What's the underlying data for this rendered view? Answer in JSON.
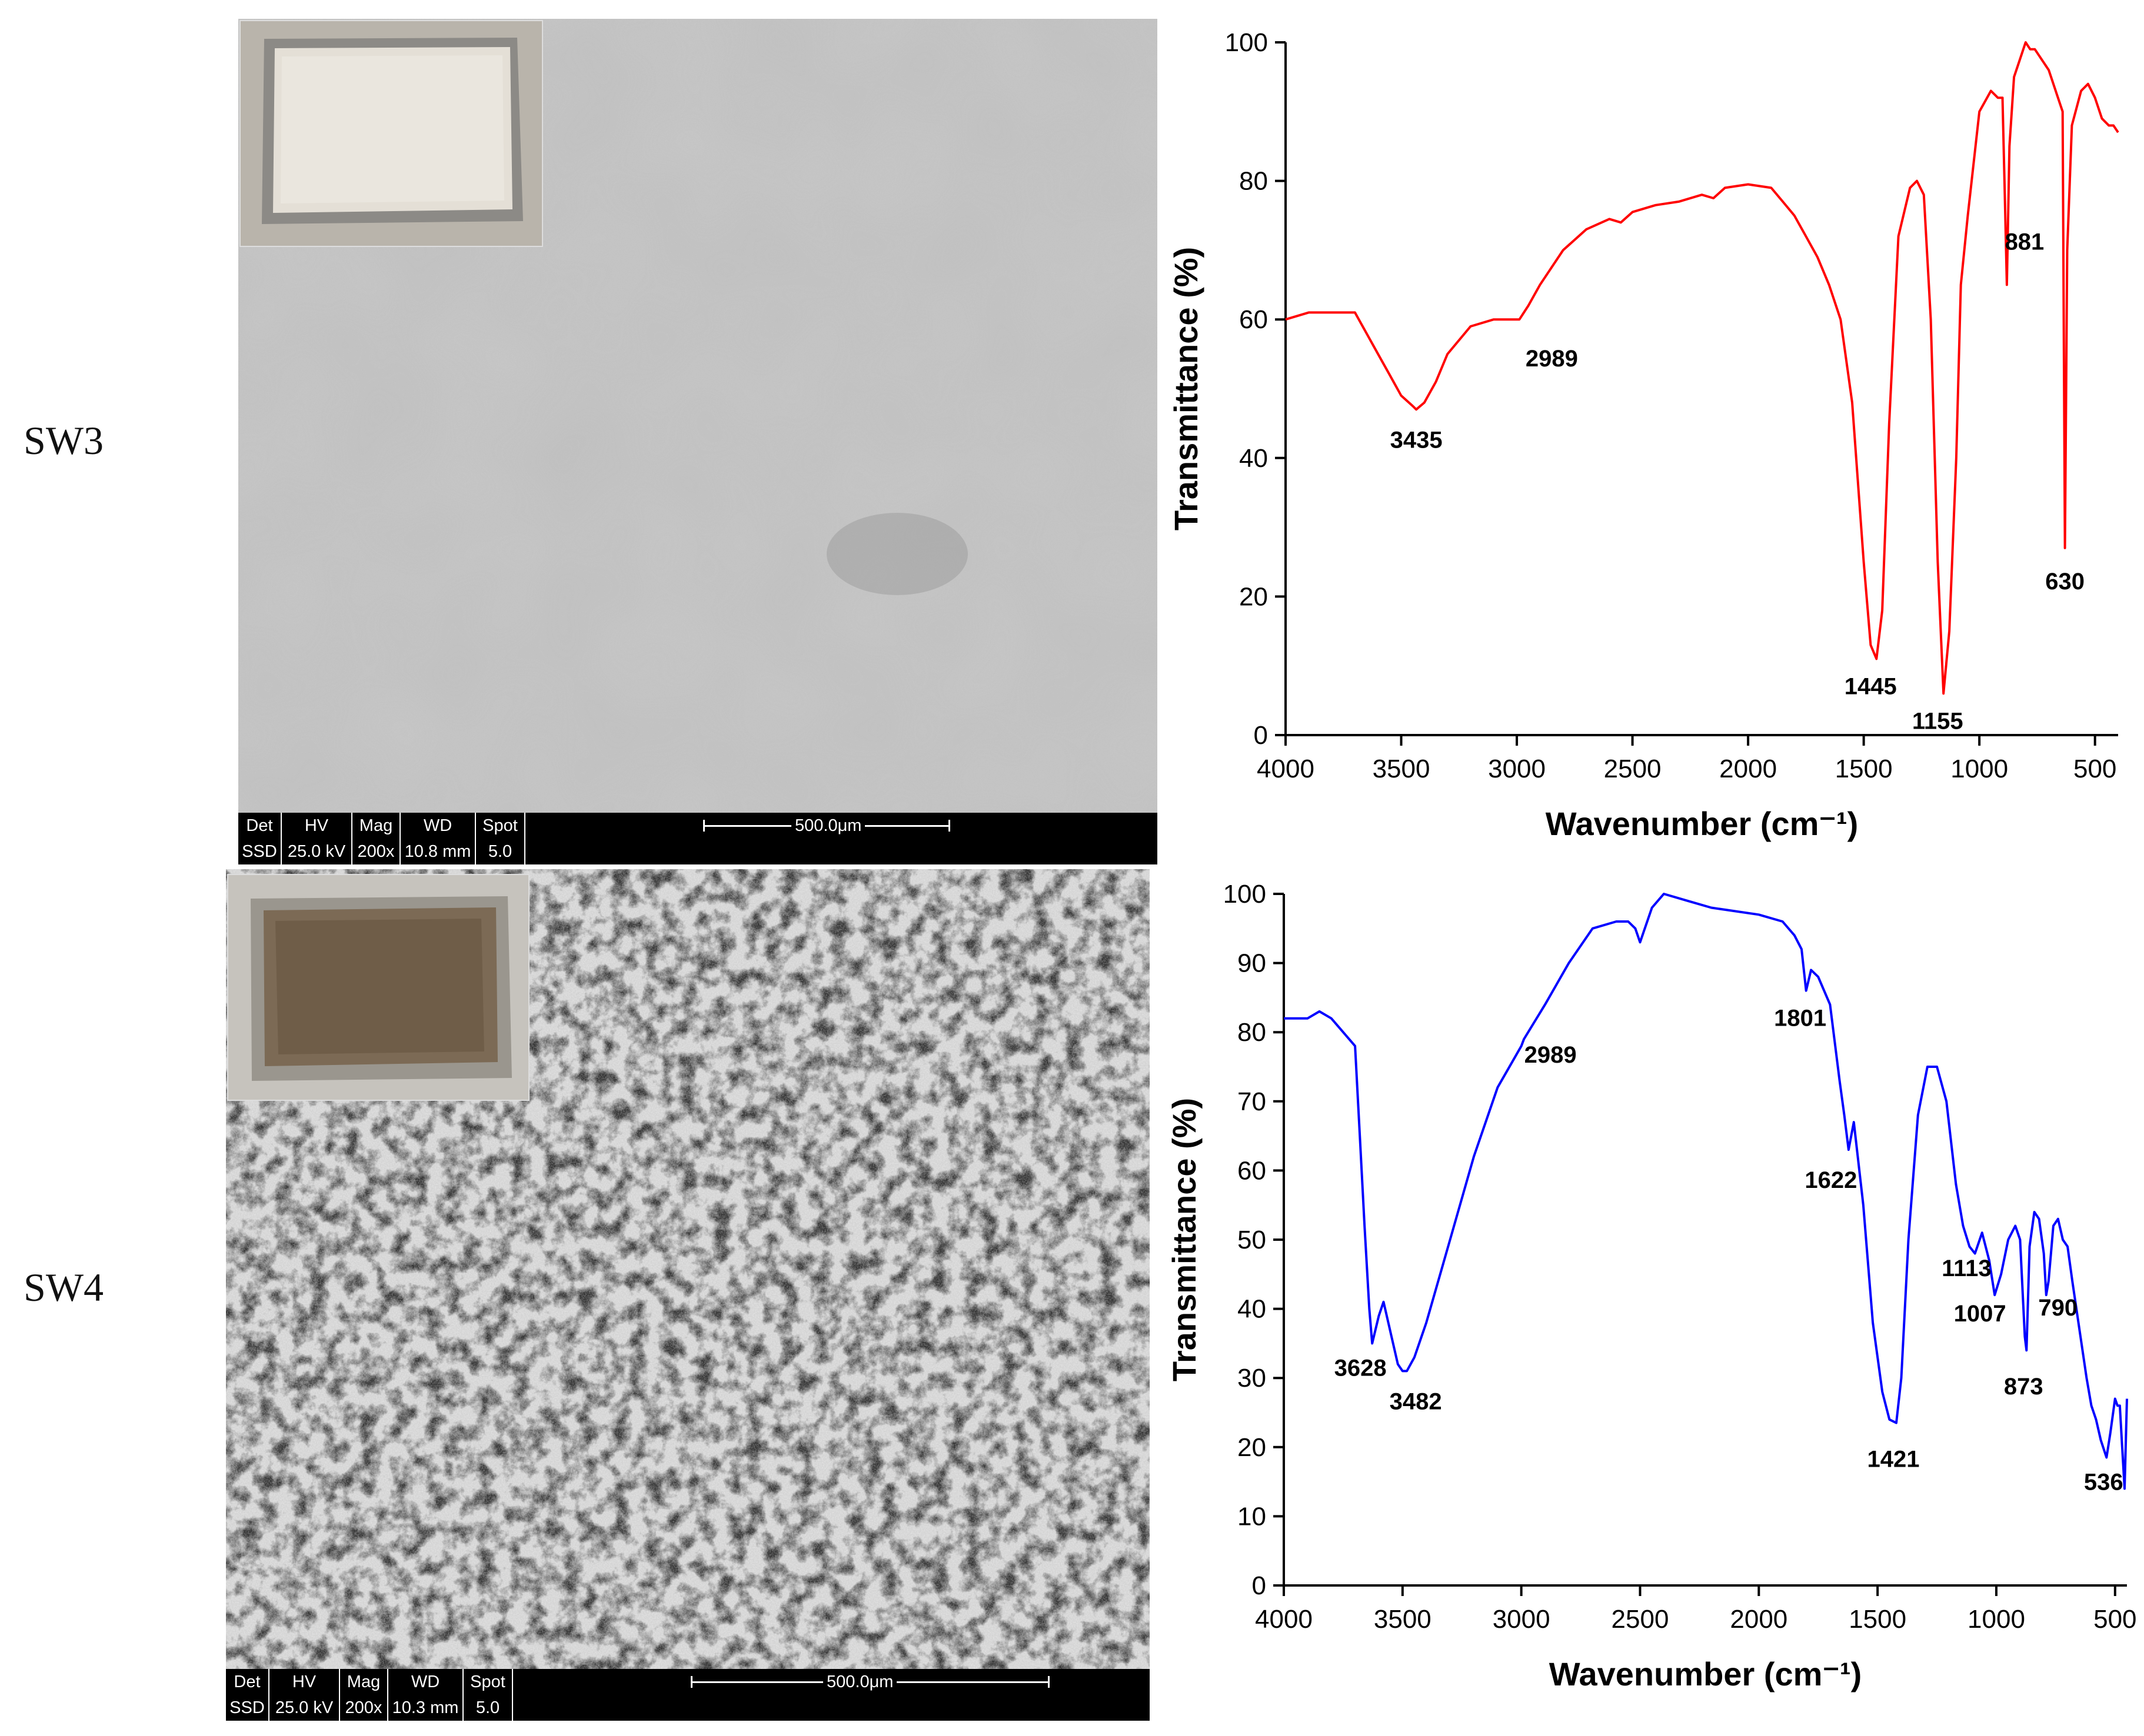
{
  "panels": [
    {
      "label": "SW3",
      "sem_databar": {
        "headers": [
          "Det",
          "HV",
          "Mag",
          "WD",
          "Spot"
        ],
        "values": [
          "SSD",
          "25.0 kV",
          "200x",
          "10.8 mm",
          "5.0"
        ],
        "scale": "500.0μm"
      },
      "chart_data": {
        "type": "line",
        "xlabel": "Wavenumber (cm⁻¹)",
        "ylabel": "Transmittance (%)",
        "xlim": [
          4000,
          400
        ],
        "ylim": [
          0,
          100
        ],
        "xticks": [
          4000,
          3500,
          3000,
          2500,
          2000,
          1500,
          1000,
          500
        ],
        "yticks": [
          0,
          20,
          40,
          60,
          80,
          100
        ],
        "color": "#ff0000",
        "series": [
          {
            "x": [
              4000,
              3900,
              3800,
              3700,
              3650,
              3600,
              3550,
              3500,
              3450,
              3435,
              3400,
              3350,
              3300,
              3200,
              3100,
              3000,
              2989,
              2950,
              2900,
              2800,
              2700,
              2600,
              2550,
              2500,
              2450,
              2400,
              2300,
              2200,
              2150,
              2100,
              2000,
              1900,
              1850,
              1800,
              1750,
              1700,
              1650,
              1600,
              1550,
              1500,
              1470,
              1445,
              1420,
              1390,
              1350,
              1300,
              1270,
              1240,
              1210,
              1180,
              1155,
              1130,
              1100,
              1080,
              1050,
              1000,
              950,
              920,
              900,
              890,
              881,
              870,
              850,
              800,
              780,
              760,
              700,
              660,
              640,
              630,
              620,
              600,
              560,
              530,
              500,
              470,
              440,
              420,
              400
            ],
            "y": [
              60,
              61,
              61,
              61,
              58,
              55,
              52,
              49,
              47.5,
              47,
              48,
              51,
              55,
              59,
              60,
              60,
              60,
              62,
              65,
              70,
              73,
              74.5,
              74,
              75.5,
              76,
              76.5,
              77,
              78,
              77.5,
              79,
              79.5,
              79,
              77,
              75,
              72,
              69,
              65,
              60,
              48,
              25,
              13,
              11,
              18,
              45,
              72,
              79,
              80,
              78,
              60,
              25,
              6,
              15,
              40,
              65,
              75,
              90,
              93,
              92,
              92,
              78,
              65,
              85,
              95,
              100,
              99,
              99,
              96,
              92,
              90,
              27,
              70,
              88,
              93,
              94,
              92,
              89,
              88,
              88,
              87
            ]
          }
        ],
        "annotations": [
          "3435",
          "2989",
          "1445",
          "1155",
          "881",
          "630"
        ]
      }
    },
    {
      "label": "SW4",
      "sem_databar": {
        "headers": [
          "Det",
          "HV",
          "Mag",
          "WD",
          "Spot"
        ],
        "values": [
          "SSD",
          "25.0 kV",
          "200x",
          "10.3 mm",
          "5.0"
        ],
        "scale": "500.0μm"
      },
      "chart_data": {
        "type": "line",
        "xlabel": "Wavenumber (cm⁻¹)",
        "ylabel": "Transmittance (%)",
        "xlim": [
          4000,
          450
        ],
        "ylim": [
          0,
          100
        ],
        "xticks": [
          4000,
          3500,
          3000,
          2500,
          2000,
          1500,
          1000,
          500
        ],
        "yticks": [
          0,
          10,
          20,
          30,
          40,
          50,
          60,
          70,
          80,
          90,
          100
        ],
        "color": "#0000ff",
        "series": [
          {
            "x": [
              4000,
              3900,
              3850,
              3800,
              3750,
              3700,
              3680,
              3660,
              3640,
              3628,
              3600,
              3580,
              3560,
              3540,
              3520,
              3500,
              3482,
              3450,
              3400,
              3300,
              3200,
              3100,
              3000,
              2989,
              2900,
              2800,
              2700,
              2600,
              2550,
              2520,
              2500,
              2450,
              2400,
              2300,
              2200,
              2000,
              1900,
              1850,
              1820,
              1801,
              1780,
              1750,
              1700,
              1660,
              1640,
              1622,
              1600,
              1560,
              1520,
              1480,
              1450,
              1421,
              1400,
              1370,
              1330,
              1290,
              1250,
              1210,
              1170,
              1140,
              1113,
              1090,
              1060,
              1030,
              1007,
              980,
              950,
              920,
              900,
              880,
              873,
              860,
              840,
              820,
              800,
              790,
              780,
              760,
              740,
              720,
              700,
              680,
              650,
              620,
              600,
              580,
              560,
              536,
              520,
              500,
              490,
              480,
              470,
              460,
              450
            ],
            "y": [
              82,
              82,
              83,
              82,
              80,
              78,
              65,
              52,
              40,
              35,
              39,
              41,
              38,
              35,
              32,
              31,
              31,
              33,
              38,
              50,
              62,
              72,
              78,
              79,
              84,
              90,
              95,
              96,
              96,
              95,
              93,
              98,
              100,
              99,
              98,
              97,
              96,
              94,
              92,
              86,
              89,
              88,
              84,
              73,
              68,
              63,
              67,
              55,
              38,
              28,
              24,
              23.5,
              30,
              50,
              68,
              75,
              75,
              70,
              58,
              52,
              49,
              48,
              51,
              47,
              42,
              45,
              50,
              52,
              50,
              36,
              34,
              49,
              54,
              53,
              48,
              42,
              44,
              52,
              53,
              50,
              49,
              44,
              37,
              30,
              26,
              24,
              21,
              18.5,
              22,
              27,
              26,
              26,
              20,
              14,
              27
            ]
          }
        ],
        "annotations": [
          "3628",
          "3482",
          "2989",
          "1801",
          "1622",
          "1421",
          "1113",
          "1007",
          "873",
          "790",
          "536"
        ]
      }
    }
  ]
}
